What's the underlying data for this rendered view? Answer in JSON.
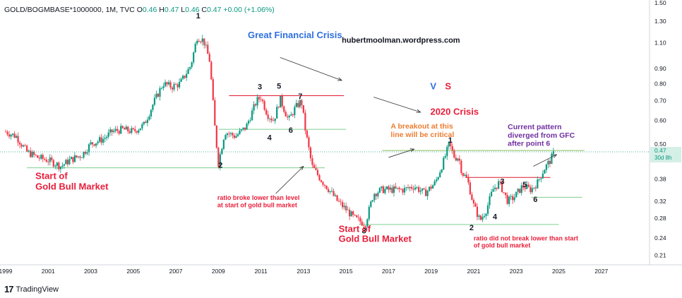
{
  "header": {
    "symbol": "GOLD/BOGMBASE*1000000, 1M, TVC",
    "o_label": "O",
    "o": "0.46",
    "h_label": "H",
    "h": "0.47",
    "l_label": "L",
    "l": "0.46",
    "c_label": "C",
    "c": "0.47",
    "change": "+0.00 (+1.06%)"
  },
  "watermark": {
    "site": "hubertmoolman.wordpress.com",
    "brand": "TradingView"
  },
  "price_tag": {
    "value": "0.47",
    "countdown": "30d 8h"
  },
  "colors": {
    "up": "#089981",
    "down": "#f23645",
    "green_line": "#00b050",
    "red_line": "#e0192d",
    "orange": "#ed7d31",
    "blue": "#2f6fe0",
    "purple": "#7030a0",
    "red_text": "#e81e3a"
  },
  "chart_data": {
    "type": "candlestick",
    "scale": "log",
    "ylim": [
      0.195,
      1.5
    ],
    "xlim": [
      1999.0,
      2029.0
    ],
    "y_ticks": [
      "1.50",
      "1.30",
      "1.10",
      "0.90",
      "0.80",
      "0.70",
      "0.60",
      "0.50",
      "0.38",
      "0.32",
      "0.28",
      "0.24",
      "0.21"
    ],
    "x_ticks": [
      "1999",
      "2001",
      "2003",
      "2005",
      "2007",
      "2009",
      "2011",
      "2013",
      "2015",
      "2017",
      "2019",
      "2021",
      "2023",
      "2025",
      "2027"
    ],
    "price_path": [
      [
        1999.0,
        0.55
      ],
      [
        1999.5,
        0.53
      ],
      [
        2000.0,
        0.47
      ],
      [
        2000.5,
        0.45
      ],
      [
        2001.0,
        0.44
      ],
      [
        2001.6,
        0.42
      ],
      [
        2002.0,
        0.44
      ],
      [
        2002.6,
        0.46
      ],
      [
        2003.0,
        0.5
      ],
      [
        2003.6,
        0.52
      ],
      [
        2004.0,
        0.55
      ],
      [
        2004.5,
        0.56
      ],
      [
        2005.0,
        0.55
      ],
      [
        2005.5,
        0.58
      ],
      [
        2006.0,
        0.7
      ],
      [
        2006.4,
        0.8
      ],
      [
        2006.8,
        0.78
      ],
      [
        2007.2,
        0.8
      ],
      [
        2007.7,
        0.92
      ],
      [
        2008.0,
        1.15
      ],
      [
        2008.3,
        1.12
      ],
      [
        2008.6,
        0.95
      ],
      [
        2008.85,
        0.55
      ],
      [
        2009.0,
        0.43
      ],
      [
        2009.3,
        0.55
      ],
      [
        2009.8,
        0.53
      ],
      [
        2010.3,
        0.57
      ],
      [
        2010.8,
        0.7
      ],
      [
        2011.0,
        0.72
      ],
      [
        2011.3,
        0.63
      ],
      [
        2011.6,
        0.6
      ],
      [
        2011.9,
        0.71
      ],
      [
        2012.3,
        0.6
      ],
      [
        2012.6,
        0.66
      ],
      [
        2012.9,
        0.7
      ],
      [
        2013.1,
        0.55
      ],
      [
        2013.4,
        0.42
      ],
      [
        2013.8,
        0.38
      ],
      [
        2014.2,
        0.35
      ],
      [
        2014.6,
        0.32
      ],
      [
        2015.0,
        0.3
      ],
      [
        2015.4,
        0.28
      ],
      [
        2015.9,
        0.268
      ],
      [
        2016.3,
        0.34
      ],
      [
        2016.7,
        0.35
      ],
      [
        2017.2,
        0.35
      ],
      [
        2017.7,
        0.35
      ],
      [
        2018.2,
        0.36
      ],
      [
        2018.7,
        0.34
      ],
      [
        2019.2,
        0.37
      ],
      [
        2019.6,
        0.44
      ],
      [
        2019.85,
        0.5
      ],
      [
        2020.1,
        0.45
      ],
      [
        2020.3,
        0.45
      ],
      [
        2020.45,
        0.4
      ],
      [
        2020.7,
        0.38
      ],
      [
        2021.0,
        0.31
      ],
      [
        2021.3,
        0.275
      ],
      [
        2021.6,
        0.3
      ],
      [
        2021.9,
        0.35
      ],
      [
        2022.2,
        0.37
      ],
      [
        2022.6,
        0.32
      ],
      [
        2022.9,
        0.33
      ],
      [
        2023.3,
        0.36
      ],
      [
        2023.7,
        0.35
      ],
      [
        2024.0,
        0.37
      ],
      [
        2024.3,
        0.41
      ],
      [
        2024.6,
        0.44
      ],
      [
        2024.8,
        0.47
      ]
    ],
    "annotations": [
      {
        "text": "Great Financial Crisis",
        "color": "blue"
      },
      {
        "text": "V",
        "color": "blue"
      },
      {
        "text": "S",
        "color": "red_text"
      },
      {
        "text": "2020 Crisis",
        "color": "red_text"
      },
      {
        "text": "A breakout at this",
        "color": "orange"
      },
      {
        "text": "line will be critical",
        "color": "orange"
      },
      {
        "text": "Current pattern",
        "color": "purple"
      },
      {
        "text": "diverged from GFC",
        "color": "purple"
      },
      {
        "text": "after point 6",
        "color": "purple"
      },
      {
        "text": "Start of",
        "color": "red_text"
      },
      {
        "text": "Gold Bull Market",
        "color": "red_text"
      },
      {
        "text": "ratio broke lower than level",
        "color": "red_text"
      },
      {
        "text": "at start of gold bull market",
        "color": "red_text"
      },
      {
        "text": "Start of",
        "color": "red_text"
      },
      {
        "text": "Gold Bull Market",
        "color": "red_text"
      },
      {
        "text": "ratio did not break lower than start",
        "color": "red_text"
      },
      {
        "text": "of gold bull market",
        "color": "red_text"
      }
    ],
    "point_labels": [
      "1",
      "2",
      "3",
      "5",
      "7",
      "4",
      "6",
      "8",
      "1",
      "2",
      "3",
      "5",
      "4",
      "6"
    ]
  }
}
